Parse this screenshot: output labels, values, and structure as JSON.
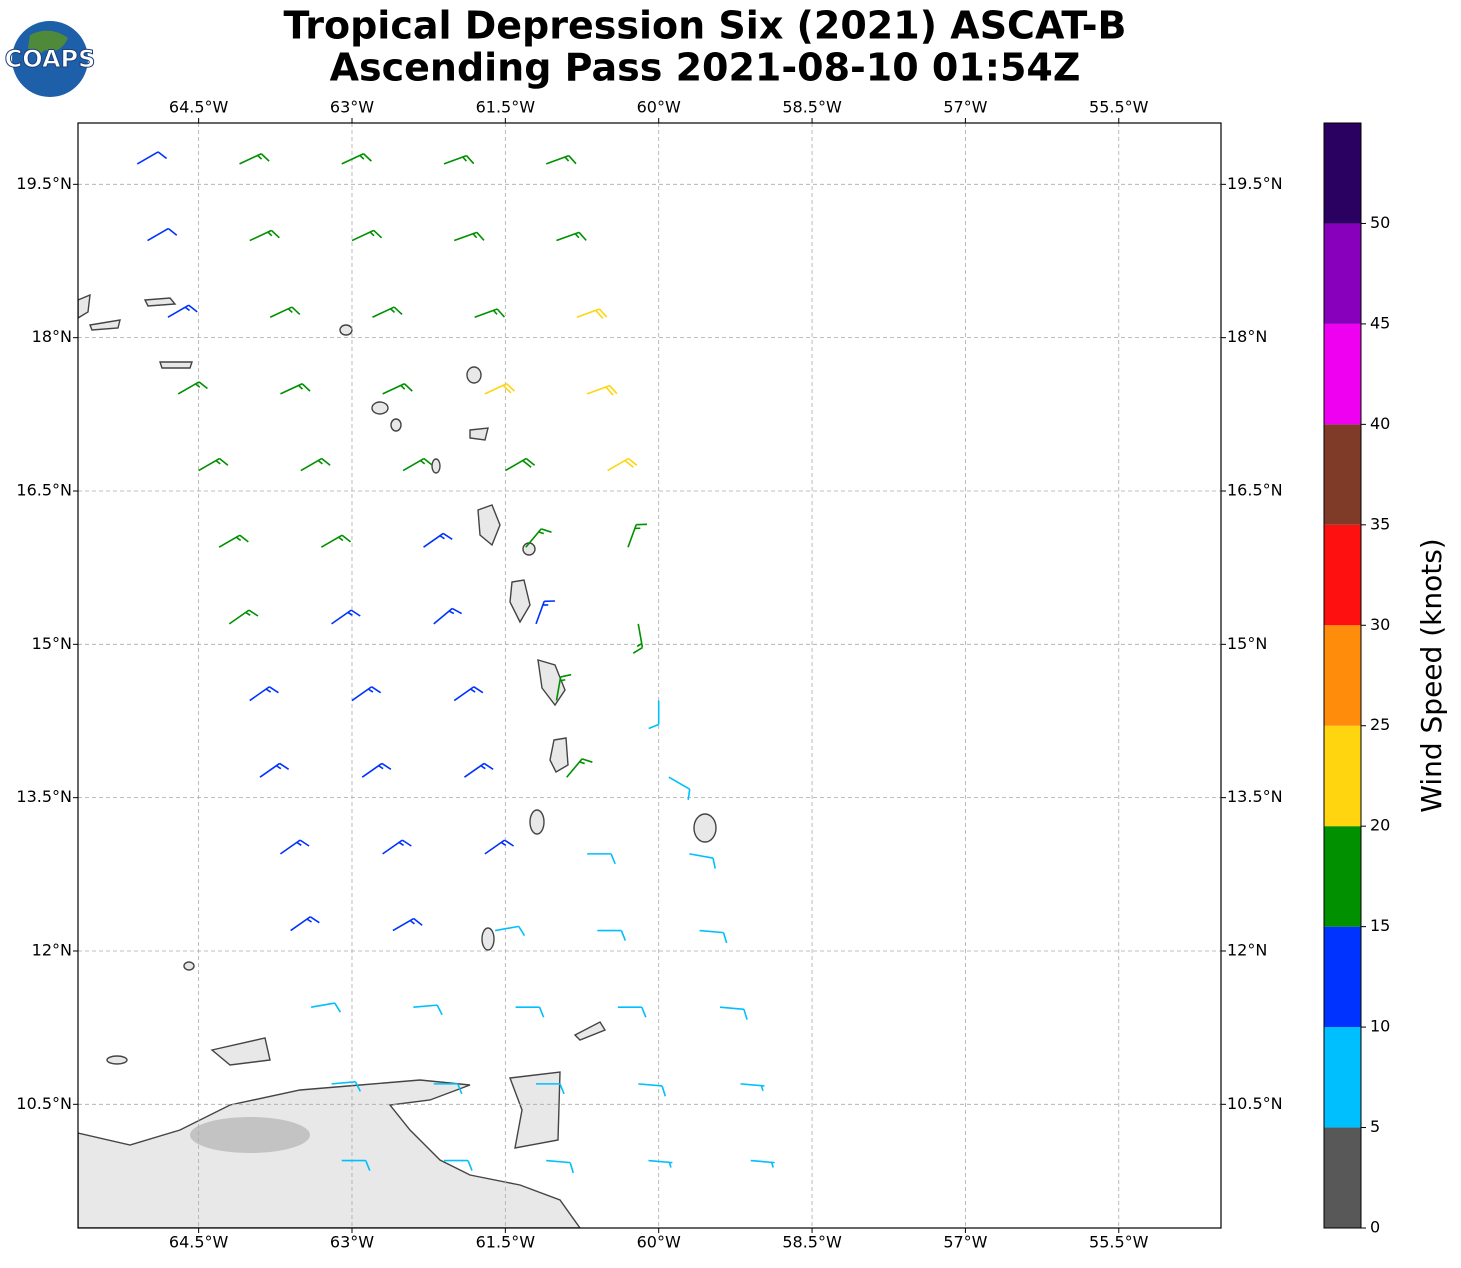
{
  "logo": {
    "text": "COAPS"
  },
  "chart_data": {
    "type": "barb-map",
    "title": "Tropical Depression Six (2021) ASCAT-B",
    "subtitle": "Ascending Pass 2021-08-10 01:54Z",
    "xlim": [
      -65.68,
      -54.5
    ],
    "ylim": [
      9.29,
      20.1
    ],
    "xticks": [
      {
        "value": -64.5,
        "label": "64.5°W"
      },
      {
        "value": -63,
        "label": "63°W"
      },
      {
        "value": -61.5,
        "label": "61.5°W"
      },
      {
        "value": -60,
        "label": "60°W"
      },
      {
        "value": -58.5,
        "label": "58.5°W"
      },
      {
        "value": -57,
        "label": "57°W"
      },
      {
        "value": -55.5,
        "label": "55.5°W"
      }
    ],
    "yticks": [
      {
        "value": 19.5,
        "label": "19.5°N"
      },
      {
        "value": 18,
        "label": "18°N"
      },
      {
        "value": 16.5,
        "label": "16.5°N"
      },
      {
        "value": 15,
        "label": "15°N"
      },
      {
        "value": 13.5,
        "label": "13.5°N"
      },
      {
        "value": 12,
        "label": "12°N"
      },
      {
        "value": 10.5,
        "label": "10.5°N"
      }
    ],
    "grid": true,
    "colorbar": {
      "label": "Wind Speed (knots)",
      "lim": [
        0,
        55
      ],
      "ticks": [
        0,
        5,
        10,
        15,
        20,
        25,
        30,
        35,
        40,
        45,
        50
      ],
      "bounds": [
        0,
        5,
        10,
        15,
        20,
        25,
        30,
        35,
        40,
        45,
        50,
        55
      ],
      "colors": [
        "#585858",
        "#00bfff",
        "#0033ff",
        "#009000",
        "#ffd510",
        "#ff8c0a",
        "#ff1010",
        "#803a28",
        "#f000f0",
        "#8800bb",
        "#2a0060"
      ]
    },
    "barbs": {
      "lon": [
        -65.1,
        -64.1,
        -63.1,
        -62.1,
        -61.1,
        -65.0,
        -64.0,
        -63.0,
        -62.0,
        -61.0,
        -64.8,
        -63.8,
        -62.8,
        -61.8,
        -60.8,
        -64.7,
        -63.7,
        -62.7,
        -61.7,
        -60.7,
        -64.5,
        -63.5,
        -62.5,
        -61.5,
        -60.5,
        -64.3,
        -63.3,
        -62.3,
        -61.3,
        -60.3,
        -64.2,
        -63.2,
        -62.2,
        -61.2,
        -60.2,
        -64.0,
        -63.0,
        -62.0,
        -61.0,
        -60.0,
        -63.9,
        -62.9,
        -61.9,
        -60.9,
        -59.9,
        -63.7,
        -62.7,
        -61.7,
        -60.7,
        -59.7,
        -63.6,
        -62.6,
        -61.6,
        -60.6,
        -59.6,
        -63.4,
        -62.4,
        -61.4,
        -60.4,
        -59.4,
        -63.2,
        -62.2,
        -61.2,
        -60.2,
        -59.2,
        -63.1,
        -62.1,
        -61.1,
        -60.1,
        -59.1
      ],
      "lat": [
        19.7,
        19.7,
        19.7,
        19.7,
        19.7,
        18.95,
        18.95,
        18.95,
        18.95,
        18.95,
        18.2,
        18.2,
        18.2,
        18.2,
        18.2,
        17.45,
        17.45,
        17.45,
        17.45,
        17.45,
        16.7,
        16.7,
        16.7,
        16.7,
        16.7,
        15.95,
        15.95,
        15.95,
        15.95,
        15.95,
        15.2,
        15.2,
        15.2,
        15.2,
        15.2,
        14.45,
        14.45,
        14.45,
        14.45,
        14.45,
        13.7,
        13.7,
        13.7,
        13.7,
        13.7,
        12.95,
        12.95,
        12.95,
        12.95,
        12.95,
        12.2,
        12.2,
        12.2,
        12.2,
        12.2,
        11.45,
        11.45,
        11.45,
        11.45,
        11.45,
        10.7,
        10.7,
        10.7,
        10.7,
        10.7,
        9.95,
        9.95,
        9.95,
        9.95,
        9.95
      ],
      "speed": [
        12,
        16,
        17,
        17,
        17,
        12,
        16,
        17,
        17,
        17,
        13,
        16,
        17,
        17,
        22,
        16,
        17,
        17,
        22,
        22,
        17,
        17,
        17,
        18,
        22,
        17,
        17,
        13,
        17,
        17,
        16,
        13,
        13,
        13,
        17,
        13,
        13,
        13,
        17,
        8,
        13,
        13,
        13,
        17,
        8,
        13,
        13,
        13,
        8,
        8,
        13,
        13,
        8,
        8,
        8,
        8,
        8,
        8,
        8,
        8,
        8,
        8,
        8,
        8,
        7,
        8,
        8,
        8,
        7,
        7
      ],
      "direction": [
        60,
        65,
        65,
        70,
        70,
        60,
        65,
        65,
        70,
        70,
        60,
        65,
        65,
        70,
        70,
        60,
        65,
        65,
        65,
        70,
        60,
        60,
        60,
        60,
        60,
        60,
        60,
        55,
        40,
        20,
        55,
        55,
        50,
        20,
        170,
        55,
        55,
        55,
        10,
        180,
        55,
        55,
        55,
        40,
        120,
        55,
        55,
        55,
        90,
        100,
        55,
        60,
        80,
        90,
        95,
        80,
        85,
        90,
        90,
        95,
        85,
        90,
        90,
        95,
        95,
        90,
        90,
        95,
        95,
        95
      ]
    }
  }
}
